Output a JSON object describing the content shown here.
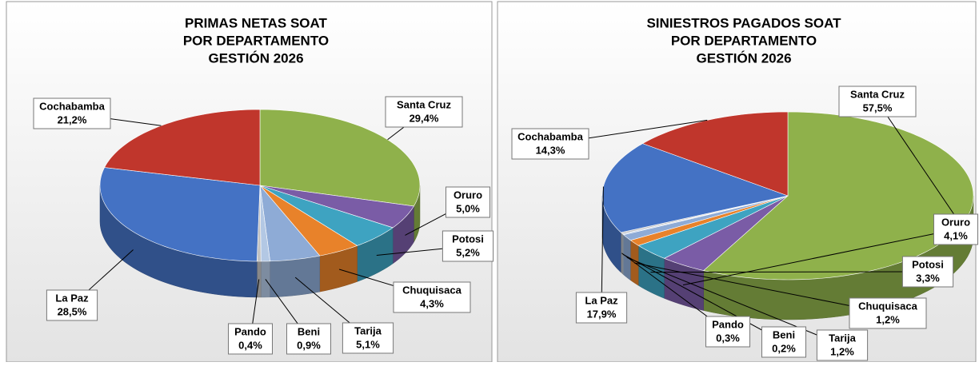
{
  "chart_data": [
    {
      "type": "pie",
      "title": [
        "PRIMAS NETAS SOAT",
        "POR DEPARTAMENTO",
        "GESTIÓN 2026"
      ],
      "categories": [
        "Santa Cruz",
        "Oruro",
        "Potosi",
        "Chuquisaca",
        "Tarija",
        "Beni",
        "Pando",
        "La Paz",
        "Cochabamba"
      ],
      "values": [
        29.4,
        5.0,
        5.2,
        4.3,
        5.1,
        0.9,
        0.4,
        28.5,
        21.2
      ],
      "value_labels": [
        "29,4%",
        "5,0%",
        "5,2%",
        "4,3%",
        "5,1%",
        "0,9%",
        "0,4%",
        "28,5%",
        "21,2%"
      ],
      "colors": [
        "#8fb14b",
        "#7a5ca6",
        "#3ea3c1",
        "#e8822a",
        "#8eabd6",
        "#b3c8e4",
        "#c2c2c2",
        "#4472c4",
        "#c0362c"
      ]
    },
    {
      "type": "pie",
      "title": [
        "SINIESTROS PAGADOS SOAT",
        "POR DEPARTAMENTO",
        "GESTIÓN 2026"
      ],
      "categories": [
        "Santa Cruz",
        "Oruro",
        "Potosi",
        "Chuquisaca",
        "Tarija",
        "Beni",
        "Pando",
        "La Paz",
        "Cochabamba"
      ],
      "values": [
        57.5,
        4.1,
        3.3,
        1.2,
        1.2,
        0.2,
        0.3,
        17.9,
        14.3
      ],
      "value_labels": [
        "57,5%",
        "4,1%",
        "3,3%",
        "1,2%",
        "1,2%",
        "0,2%",
        "0,3%",
        "17,9%",
        "14,3%"
      ],
      "colors": [
        "#8fb14b",
        "#7a5ca6",
        "#3ea3c1",
        "#e8822a",
        "#8eabd6",
        "#b3c8e4",
        "#c2c2c2",
        "#4472c4",
        "#c0362c"
      ]
    }
  ]
}
